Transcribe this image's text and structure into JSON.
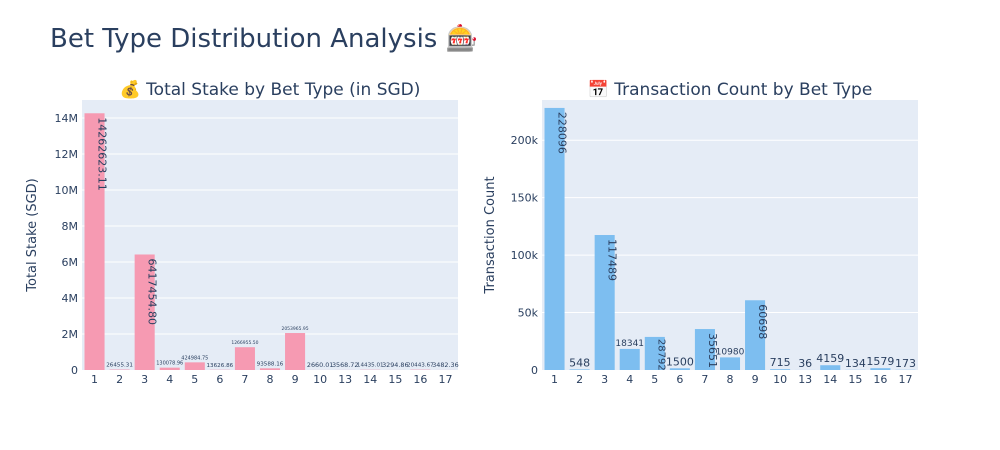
{
  "title": "Bet Type Distribution Analysis 🎰",
  "chart_data": [
    {
      "type": "bar",
      "title": "💰 Total Stake by Bet Type (in SGD)",
      "xlabel": "",
      "ylabel": "Total Stake (SGD)",
      "color": "#f69ab2",
      "ylim": [
        0,
        15000000
      ],
      "yticks": [
        0,
        2000000,
        4000000,
        6000000,
        8000000,
        10000000,
        12000000,
        14000000
      ],
      "ytick_labels": [
        "0",
        "2M",
        "4M",
        "6M",
        "8M",
        "10M",
        "12M",
        "14M"
      ],
      "categories": [
        "1",
        "2",
        "3",
        "4",
        "5",
        "6",
        "7",
        "8",
        "9",
        "10",
        "13",
        "14",
        "15",
        "16",
        "17"
      ],
      "values": [
        14262623.11,
        26455.31,
        6417454.8,
        130078.96,
        424984.75,
        13626.86,
        1266955.5,
        93588.16,
        2053965.95,
        2660.01,
        3568.72,
        14435.01,
        3294.86,
        20443.67,
        3482.36
      ],
      "data_labels": [
        "14262623.11",
        "26455.31",
        "6417454.80",
        "130078.96",
        "424984.75",
        "13626.86",
        "1266955.50",
        "93588.16",
        "2053965.95",
        "2660.01",
        "3568.72",
        "14435.01",
        "3294.86",
        "20443.67",
        "3482.36"
      ],
      "grid": true
    },
    {
      "type": "bar",
      "title": "📅 Transaction Count by Bet Type",
      "xlabel": "",
      "ylabel": "Transaction Count",
      "color": "#7dbef0",
      "ylim": [
        0,
        235000
      ],
      "yticks": [
        0,
        50000,
        100000,
        150000,
        200000
      ],
      "ytick_labels": [
        "0",
        "50k",
        "100k",
        "150k",
        "200k"
      ],
      "categories": [
        "1",
        "2",
        "3",
        "4",
        "5",
        "6",
        "7",
        "8",
        "9",
        "10",
        "13",
        "14",
        "15",
        "16",
        "17"
      ],
      "values": [
        228096,
        548,
        117489,
        18341,
        28792,
        1500,
        35651,
        10980,
        60698,
        715,
        36,
        4159,
        134,
        1579,
        173
      ],
      "data_labels": [
        "228096",
        "548",
        "117489",
        "18341",
        "28792",
        "1500",
        "35651",
        "10980",
        "60698",
        "715",
        "36",
        "4159",
        "134",
        "1579",
        "173"
      ],
      "grid": true
    }
  ]
}
